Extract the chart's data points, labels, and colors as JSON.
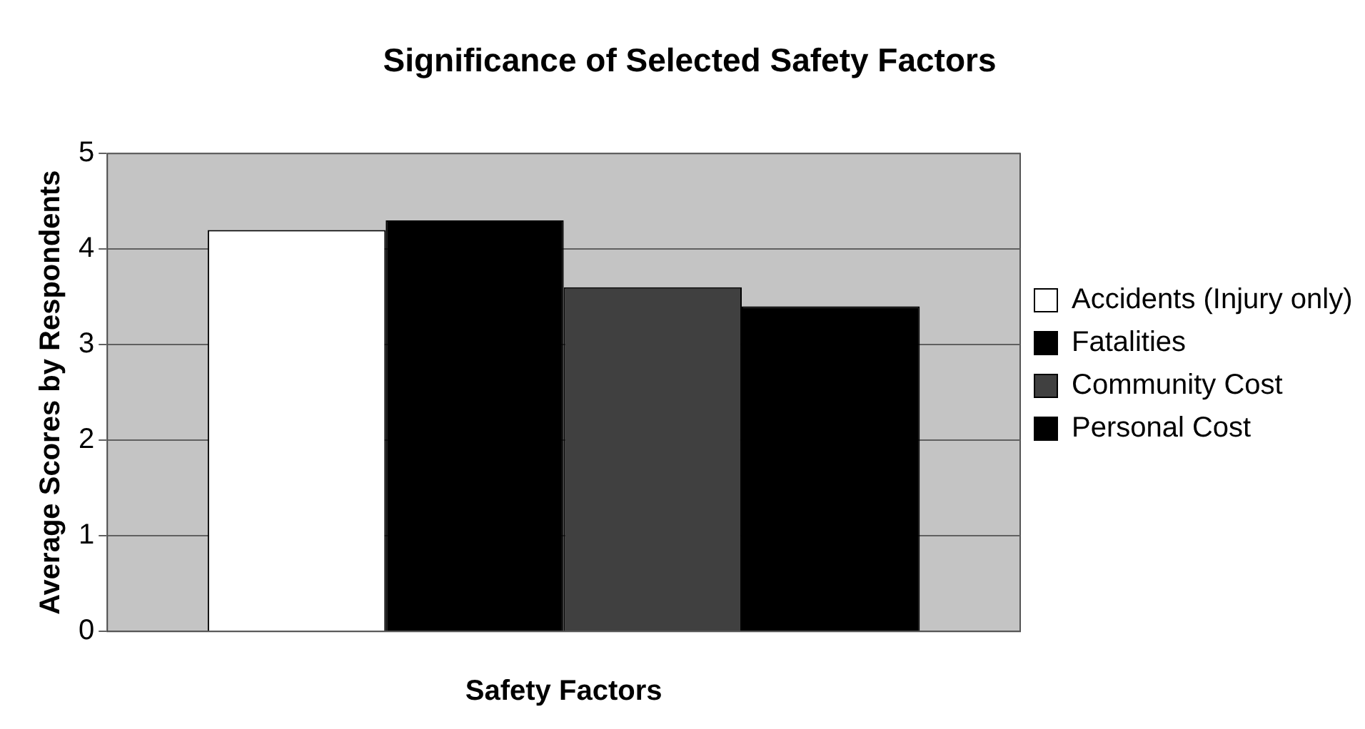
{
  "chart_data": {
    "type": "bar",
    "title": "Significance of Selected Safety Factors",
    "xlabel": "Safety Factors",
    "ylabel": "Average Scores by Respondents",
    "categories": [
      null
    ],
    "series": [
      {
        "name": "Accidents (Injury only)",
        "color": "#ffffff",
        "values": [
          4.2
        ]
      },
      {
        "name": "Fatalities",
        "color": "#000000",
        "values": [
          4.3
        ]
      },
      {
        "name": "Community Cost",
        "color": "#404040",
        "values": [
          3.6
        ]
      },
      {
        "name": "Personal Cost",
        "color": "#000000",
        "values": [
          3.4
        ]
      }
    ],
    "ylim": [
      0,
      5
    ],
    "yticks": [
      0,
      1,
      2,
      3,
      4,
      5
    ],
    "grid": "y",
    "legend": "right"
  }
}
